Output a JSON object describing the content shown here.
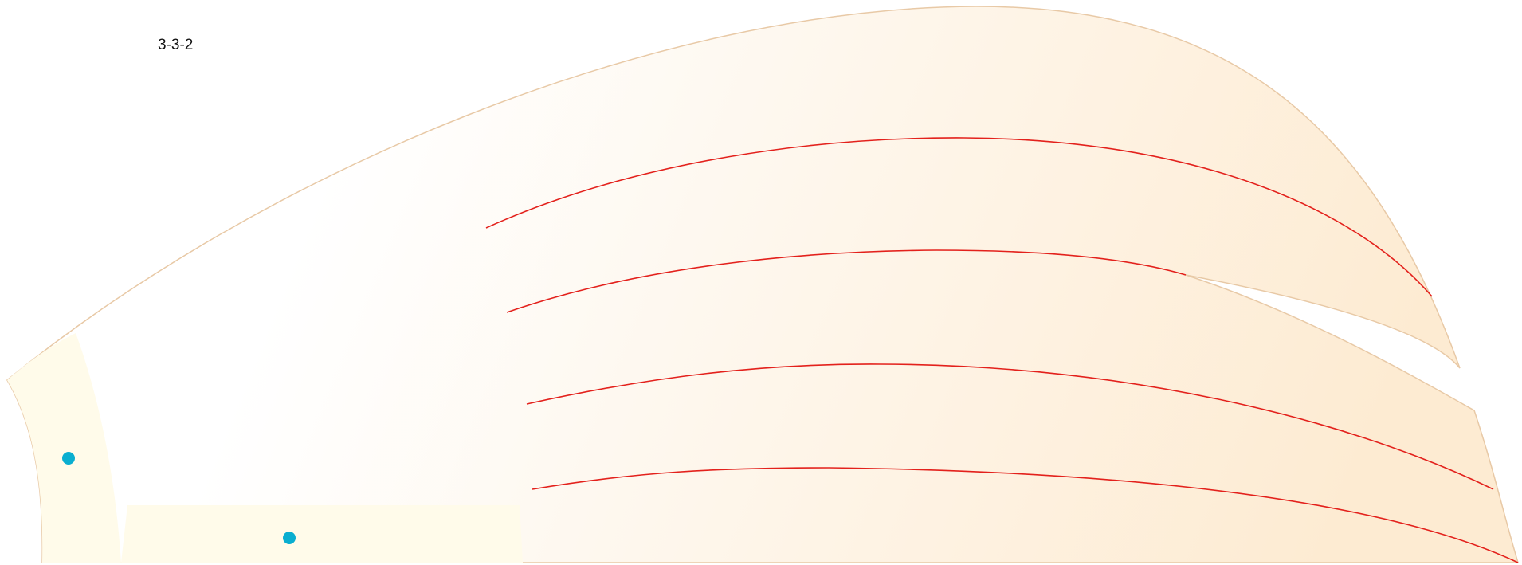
{
  "label": "3-3-2",
  "colors": {
    "outline": "#e8c9a6",
    "fill_left": "#ffffff",
    "fill_right": "#fdebd2",
    "seam_zone": "#fffbea",
    "stitch": "#e3211c",
    "marker": "#0aaed0"
  }
}
